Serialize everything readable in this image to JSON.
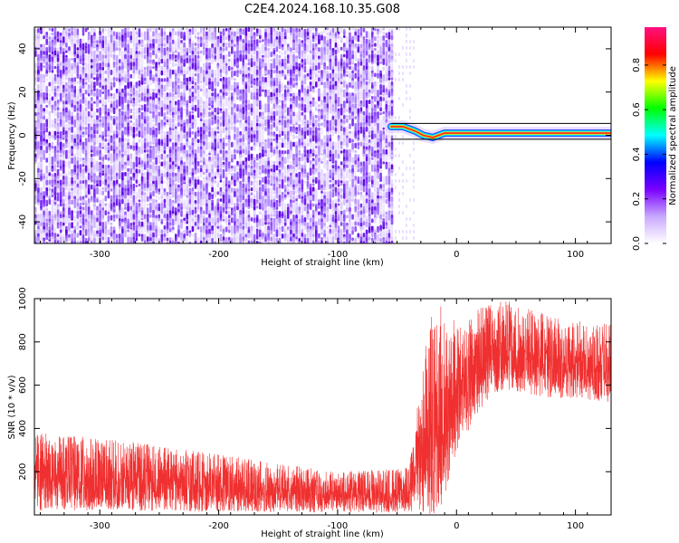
{
  "title": "C2E4.2024.168.10.35.G08",
  "colors": {
    "spectrogram_low": "#d9c6ff",
    "spectrogram_high": "#5a00e0",
    "snr_line": "#f03030",
    "axis": "#000000"
  },
  "chart_data": [
    {
      "type": "heatmap",
      "title": "C2E4.2024.168.10.35.G08",
      "xlabel": "Height of straight line (km)",
      "ylabel": "Frequency (Hz)",
      "xlim": [
        -355,
        130
      ],
      "ylim": [
        -50,
        50
      ],
      "xticks": [
        -300,
        -200,
        -100,
        0,
        100
      ],
      "yticks": [
        -40,
        -20,
        0,
        20,
        40
      ],
      "grid": false,
      "noise_region_x": [
        -355,
        -55
      ],
      "signal_onset_x": -55,
      "signal": [
        {
          "x": -55,
          "y": 4
        },
        {
          "x": -45,
          "y": 4
        },
        {
          "x": -35,
          "y": 2
        },
        {
          "x": -28,
          "y": 0
        },
        {
          "x": -20,
          "y": -1
        },
        {
          "x": -10,
          "y": 1
        },
        {
          "x": 0,
          "y": 1
        },
        {
          "x": 30,
          "y": 1
        },
        {
          "x": 60,
          "y": 1
        },
        {
          "x": 90,
          "y": 1
        },
        {
          "x": 130,
          "y": 1
        }
      ],
      "colorbar": {
        "label": "Normalized spectral amplitude",
        "range": [
          0,
          0.97
        ],
        "ticks": [
          "0.0",
          "0.2",
          "0.4",
          "0.6",
          "0.8"
        ],
        "tick_values": [
          0.0,
          0.2,
          0.4,
          0.6,
          0.8
        ],
        "colors": [
          "#ffffff",
          "#c8a8ff",
          "#7a00ff",
          "#0000ff",
          "#00ffff",
          "#00ff00",
          "#ffff00",
          "#ff0000",
          "#ff1080"
        ]
      }
    },
    {
      "type": "line",
      "xlabel": "Height of straight line (km)",
      "ylabel": "SNR (10 * v/v)",
      "xlim": [
        -355,
        130
      ],
      "ylim": [
        0,
        1000
      ],
      "xticks": [
        -300,
        -200,
        -100,
        0,
        100
      ],
      "yticks": [
        200,
        400,
        600,
        800,
        1000
      ],
      "grid": false,
      "series": [
        {
          "band_low": {
            "x": [
              -355,
              -300,
              -200,
              -100,
              -40,
              -30,
              -20,
              -10,
              0,
              10,
              20,
              30,
              40,
              60,
              80,
              100,
              130
            ],
            "y": [
              20,
              20,
              15,
              10,
              10,
              10,
              0,
              60,
              300,
              380,
              480,
              560,
              580,
              560,
              540,
              540,
              520
            ]
          },
          "band_high": {
            "x": [
              -355,
              -300,
              -200,
              -100,
              -40,
              -30,
              -20,
              -10,
              0,
              10,
              20,
              30,
              40,
              60,
              80,
              100,
              130
            ],
            "y": [
              380,
              360,
              280,
              200,
              220,
              620,
              1000,
              950,
              900,
              920,
              960,
              980,
              1000,
              960,
              920,
              900,
              880
            ]
          }
        }
      ]
    }
  ]
}
